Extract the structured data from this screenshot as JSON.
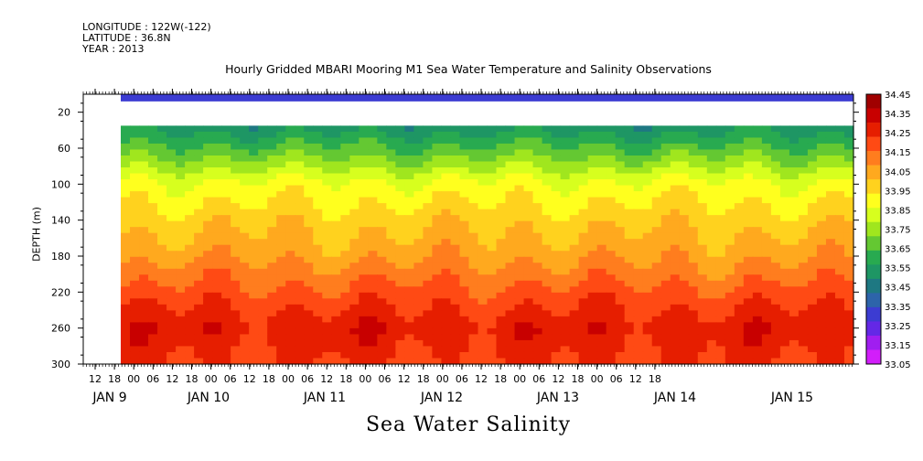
{
  "header": {
    "longitude": "LONGITUDE : 122W(-122)",
    "latitude": "LATITUDE : 36.8N",
    "year": "YEAR : 2013"
  },
  "chart_data": {
    "type": "heatmap",
    "title": "Hourly Gridded MBARI Mooring M1 Sea Water Temperature and Salinity Observations",
    "bottom_title": "Sea Water Salinity",
    "ylabel": "DEPTH (m)",
    "y_ticks": [
      20,
      60,
      100,
      140,
      180,
      220,
      260,
      300
    ],
    "ylim": [
      300,
      0
    ],
    "x_hour_ticks": [
      "12",
      "18",
      "00",
      "06",
      "12",
      "18",
      "00",
      "06",
      "12",
      "18",
      "00",
      "06",
      "12",
      "18",
      "00",
      "06",
      "12",
      "18",
      "00",
      "06",
      "12",
      "18",
      "00",
      "06",
      "12",
      "18",
      "00",
      "06",
      "12",
      "18"
    ],
    "x_day_labels": [
      "JAN  9",
      "JAN 10",
      "JAN 11",
      "JAN 12",
      "JAN 13",
      "JAN 14",
      "JAN 15"
    ],
    "data_start": "JAN 9 18:00",
    "data_end": "JAN 16 00:00",
    "colorbar_labels": [
      "34.45",
      "34.35",
      "34.25",
      "34.15",
      "34.05",
      "33.95",
      "33.85",
      "33.75",
      "33.65",
      "33.55",
      "33.45",
      "33.35",
      "33.25",
      "33.15",
      "33.05"
    ],
    "colorbar_colors": [
      "#a00000",
      "#c80000",
      "#e61e00",
      "#ff4a14",
      "#ff7d1e",
      "#ffa91e",
      "#ffd21e",
      "#ffff1e",
      "#d7ff1e",
      "#a0e61e",
      "#64c832",
      "#28aa50",
      "#1e9664",
      "#1e7882",
      "#2d64aa",
      "#3c3cd2",
      "#6428e6",
      "#a01ef0",
      "#d21efa"
    ],
    "depth_profile": [
      {
        "depth": 5,
        "salinity": 33.33
      },
      {
        "depth": 35,
        "salinity": 33.52
      },
      {
        "depth": 60,
        "salinity": 33.65
      },
      {
        "depth": 100,
        "salinity": 33.88
      },
      {
        "depth": 140,
        "salinity": 33.98
      },
      {
        "depth": 180,
        "salinity": 34.06
      },
      {
        "depth": 220,
        "salinity": 34.18
      },
      {
        "depth": 260,
        "salinity": 34.28
      },
      {
        "depth": 300,
        "salinity": 34.22
      }
    ]
  }
}
